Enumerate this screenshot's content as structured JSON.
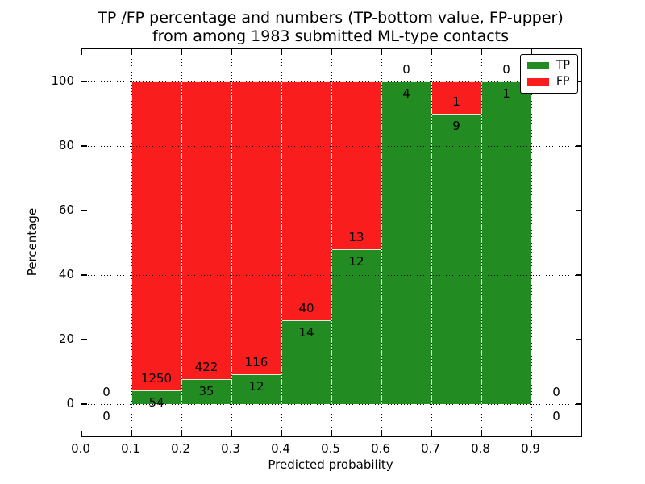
{
  "chart_data": {
    "type": "bar",
    "stacked": true,
    "title_line1": "TP /FP percentage and numbers (TP-bottom value, FP-upper)",
    "title_line2": "from among 1983 submitted ML-type contacts",
    "xlabel": "Predicted probability",
    "ylabel": "Percentage",
    "total_contacts": "1983",
    "xlim": [
      0.0,
      1.0
    ],
    "ylim": [
      -10,
      110
    ],
    "grid": true,
    "x_ticks": [
      "0.0",
      "0.1",
      "0.2",
      "0.3",
      "0.4",
      "0.5",
      "0.6",
      "0.7",
      "0.8",
      "0.9"
    ],
    "y_ticks": [
      "0",
      "20",
      "40",
      "60",
      "80",
      "100"
    ],
    "colors": {
      "tp": "#228b22",
      "fp": "#fa1d1d"
    },
    "legend": {
      "position": "upper right",
      "items": [
        {
          "label": "TP",
          "color": "#228b22"
        },
        {
          "label": "FP",
          "color": "#fa1d1d"
        }
      ]
    },
    "bins": [
      {
        "x_start": 0.0,
        "x_end": 0.1,
        "tp": 0,
        "fp": 0
      },
      {
        "x_start": 0.1,
        "x_end": 0.2,
        "tp": 54,
        "fp": 1250
      },
      {
        "x_start": 0.2,
        "x_end": 0.3,
        "tp": 35,
        "fp": 422
      },
      {
        "x_start": 0.3,
        "x_end": 0.4,
        "tp": 12,
        "fp": 116
      },
      {
        "x_start": 0.4,
        "x_end": 0.5,
        "tp": 14,
        "fp": 40
      },
      {
        "x_start": 0.5,
        "x_end": 0.6,
        "tp": 12,
        "fp": 13
      },
      {
        "x_start": 0.6,
        "x_end": 0.7,
        "tp": 4,
        "fp": 0
      },
      {
        "x_start": 0.7,
        "x_end": 0.8,
        "tp": 9,
        "fp": 1
      },
      {
        "x_start": 0.8,
        "x_end": 0.9,
        "tp": 1,
        "fp": 0
      },
      {
        "x_start": 0.9,
        "x_end": 1.0,
        "tp": 0,
        "fp": 0
      }
    ]
  }
}
